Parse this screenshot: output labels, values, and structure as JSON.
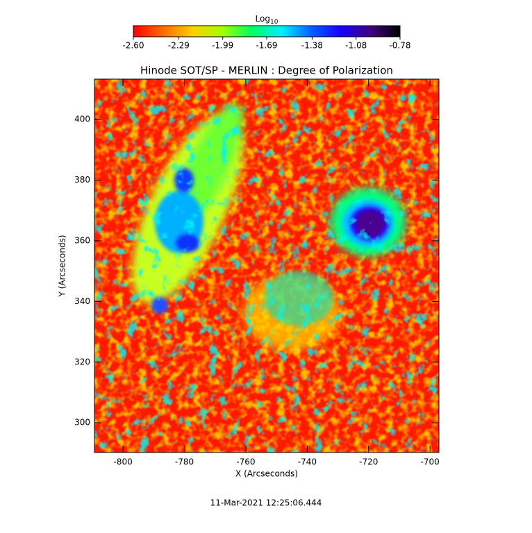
{
  "chart_data": {
    "type": "heatmap",
    "title": "Hinode SOT/SP - MERLIN : Degree of Polarization",
    "x_label": "X (Arcseconds)",
    "y_label": "Y (Arcseconds)",
    "xlim": [
      -809.3,
      -697.1
    ],
    "ylim": [
      290.2,
      413.3
    ],
    "xticks": [
      -800,
      -780,
      -760,
      -740,
      -720,
      -700
    ],
    "yticks": [
      300,
      320,
      340,
      360,
      380,
      400
    ],
    "colorbar": {
      "label": "Log",
      "label_sub": "10",
      "lim": [
        -2.6,
        -0.78
      ],
      "ticks": [
        {
          "value": -2.6,
          "label": "-2.60"
        },
        {
          "value": -2.29,
          "label": "-2.29"
        },
        {
          "value": -1.99,
          "label": "-1.99"
        },
        {
          "value": -1.69,
          "label": "-1.69"
        },
        {
          "value": -1.38,
          "label": "-1.38"
        },
        {
          "value": -1.08,
          "label": "-1.08"
        },
        {
          "value": -0.78,
          "label": "-0.78"
        }
      ],
      "colormap": [
        "#ff0000",
        "#ff6a00",
        "#ffd000",
        "#a0ff00",
        "#00ff60",
        "#00f0ff",
        "#0060ff",
        "#1a00ff",
        "#40007f",
        "#000000"
      ]
    },
    "timestamp": "11-Mar-2021 12:25:06.444"
  }
}
